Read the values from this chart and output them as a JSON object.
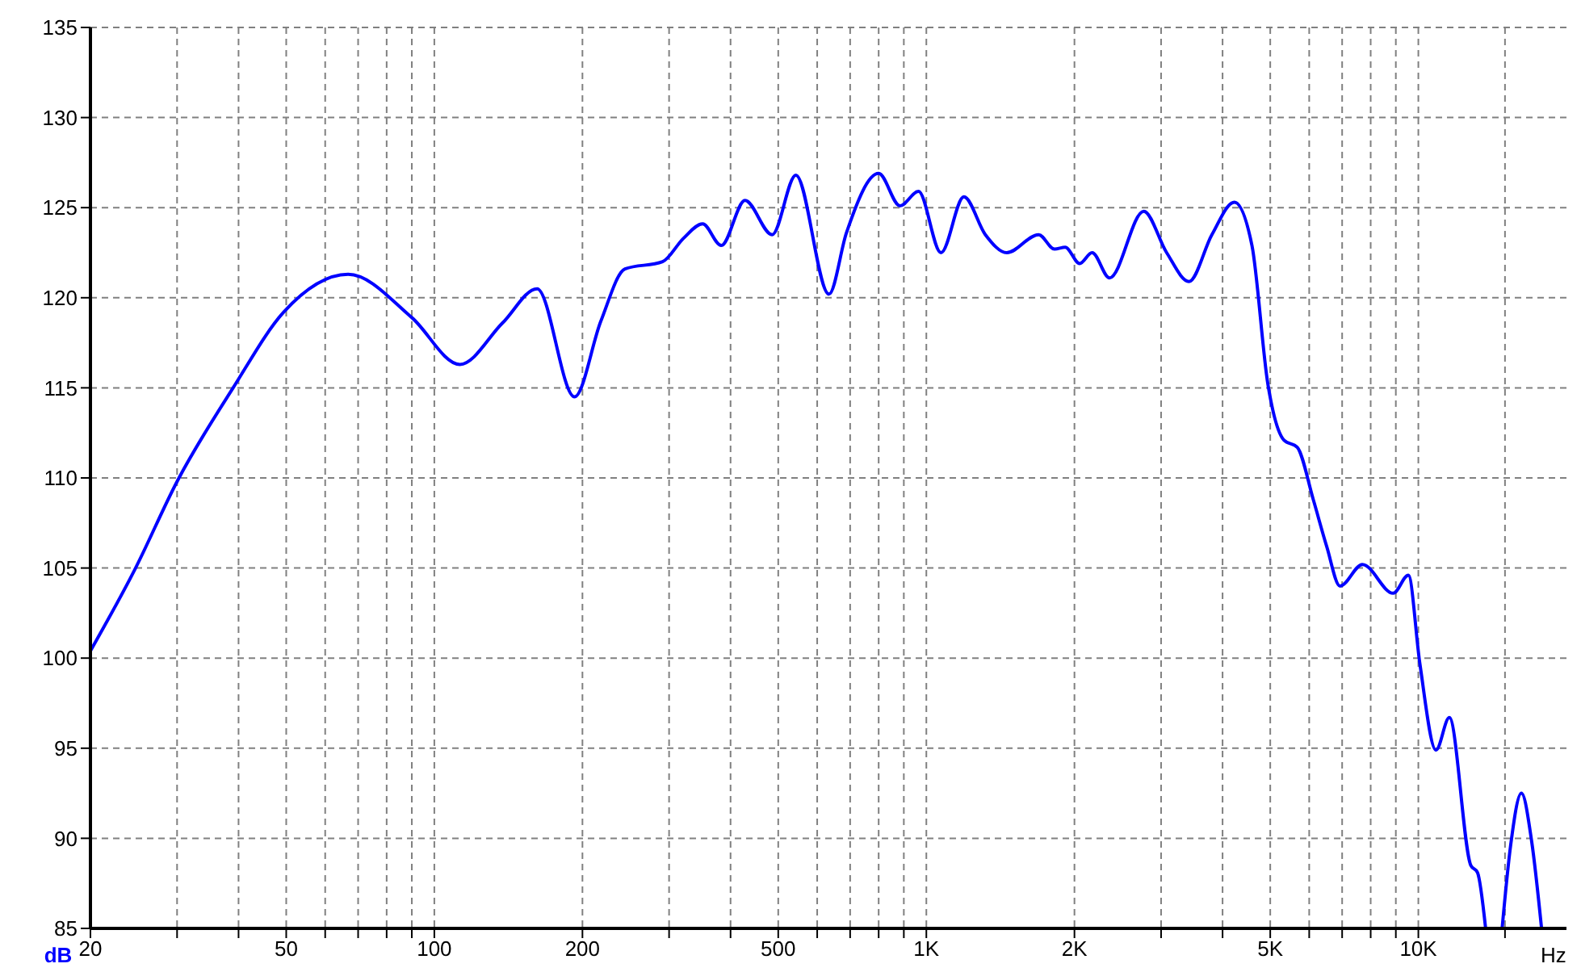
{
  "chart_data": {
    "type": "line",
    "xlabel": "Hz",
    "ylabel": "dB",
    "log": "x",
    "grid": true,
    "marker": "none",
    "line_style": "solid",
    "xlim": [
      20,
      20000
    ],
    "ylim": [
      85,
      135
    ],
    "xticks": [
      {
        "value": 20,
        "label": "20"
      },
      {
        "value": 30,
        "label": null
      },
      {
        "value": 40,
        "label": null
      },
      {
        "value": 50,
        "label": "50"
      },
      {
        "value": 60,
        "label": null
      },
      {
        "value": 70,
        "label": null
      },
      {
        "value": 80,
        "label": null
      },
      {
        "value": 90,
        "label": null
      },
      {
        "value": 100,
        "label": "100"
      },
      {
        "value": 200,
        "label": "200"
      },
      {
        "value": 300,
        "label": null
      },
      {
        "value": 400,
        "label": null
      },
      {
        "value": 500,
        "label": "500"
      },
      {
        "value": 600,
        "label": null
      },
      {
        "value": 700,
        "label": null
      },
      {
        "value": 800,
        "label": null
      },
      {
        "value": 900,
        "label": null
      },
      {
        "value": 1000,
        "label": "1K"
      },
      {
        "value": 2000,
        "label": "2K"
      },
      {
        "value": 3000,
        "label": null
      },
      {
        "value": 4000,
        "label": null
      },
      {
        "value": 5000,
        "label": "5K"
      },
      {
        "value": 6000,
        "label": null
      },
      {
        "value": 7000,
        "label": null
      },
      {
        "value": 8000,
        "label": null
      },
      {
        "value": 9000,
        "label": null
      },
      {
        "value": 10000,
        "label": "10K"
      },
      {
        "value": 15000,
        "label": null
      }
    ],
    "yticks": [
      85,
      90,
      95,
      100,
      105,
      110,
      115,
      120,
      125,
      130,
      135
    ],
    "series": [
      {
        "color": "#0000ff",
        "x": [
          20,
          24.6,
          30,
          39,
          49.4,
          66.8,
          90,
          112.7,
          137.6,
          161.8,
          192.7,
          218,
          244,
          291,
          321,
          351,
          383,
          428,
          486,
          543,
          634,
          688,
          800,
          884,
          964,
          1071,
          1192,
          1318,
          1457,
          1691,
          1822,
          1915,
          2049,
          2172,
          2357,
          2766,
          3079,
          3419,
          3805,
          4227,
          4590,
          4945,
          5330,
          5675,
          6115,
          6512,
          6931,
          7697,
          8890,
          9543,
          10070,
          10860,
          11560,
          12780,
          13190,
          13700,
          14200,
          14800,
          15400,
          16200,
          17000,
          17800
        ],
        "values": [
          100.4,
          104.9,
          109.8,
          115.0,
          119.2,
          121.3,
          118.9,
          116.3,
          118.6,
          120.5,
          114.5,
          118.7,
          121.6,
          122.0,
          123.3,
          124.1,
          122.9,
          125.4,
          123.5,
          126.8,
          120.2,
          123.6,
          126.9,
          125.1,
          125.9,
          122.5,
          125.6,
          123.5,
          122.5,
          123.5,
          122.7,
          122.8,
          121.9,
          122.5,
          121.1,
          124.8,
          122.5,
          120.9,
          123.5,
          125.3,
          122.9,
          115.2,
          112.1,
          111.7,
          108.8,
          106.2,
          104.0,
          105.2,
          103.6,
          104.6,
          99.7,
          94.9,
          96.7,
          88.5,
          88.1,
          85,
          null,
          85,
          89.6,
          92.5,
          89.8,
          85
        ]
      }
    ]
  }
}
